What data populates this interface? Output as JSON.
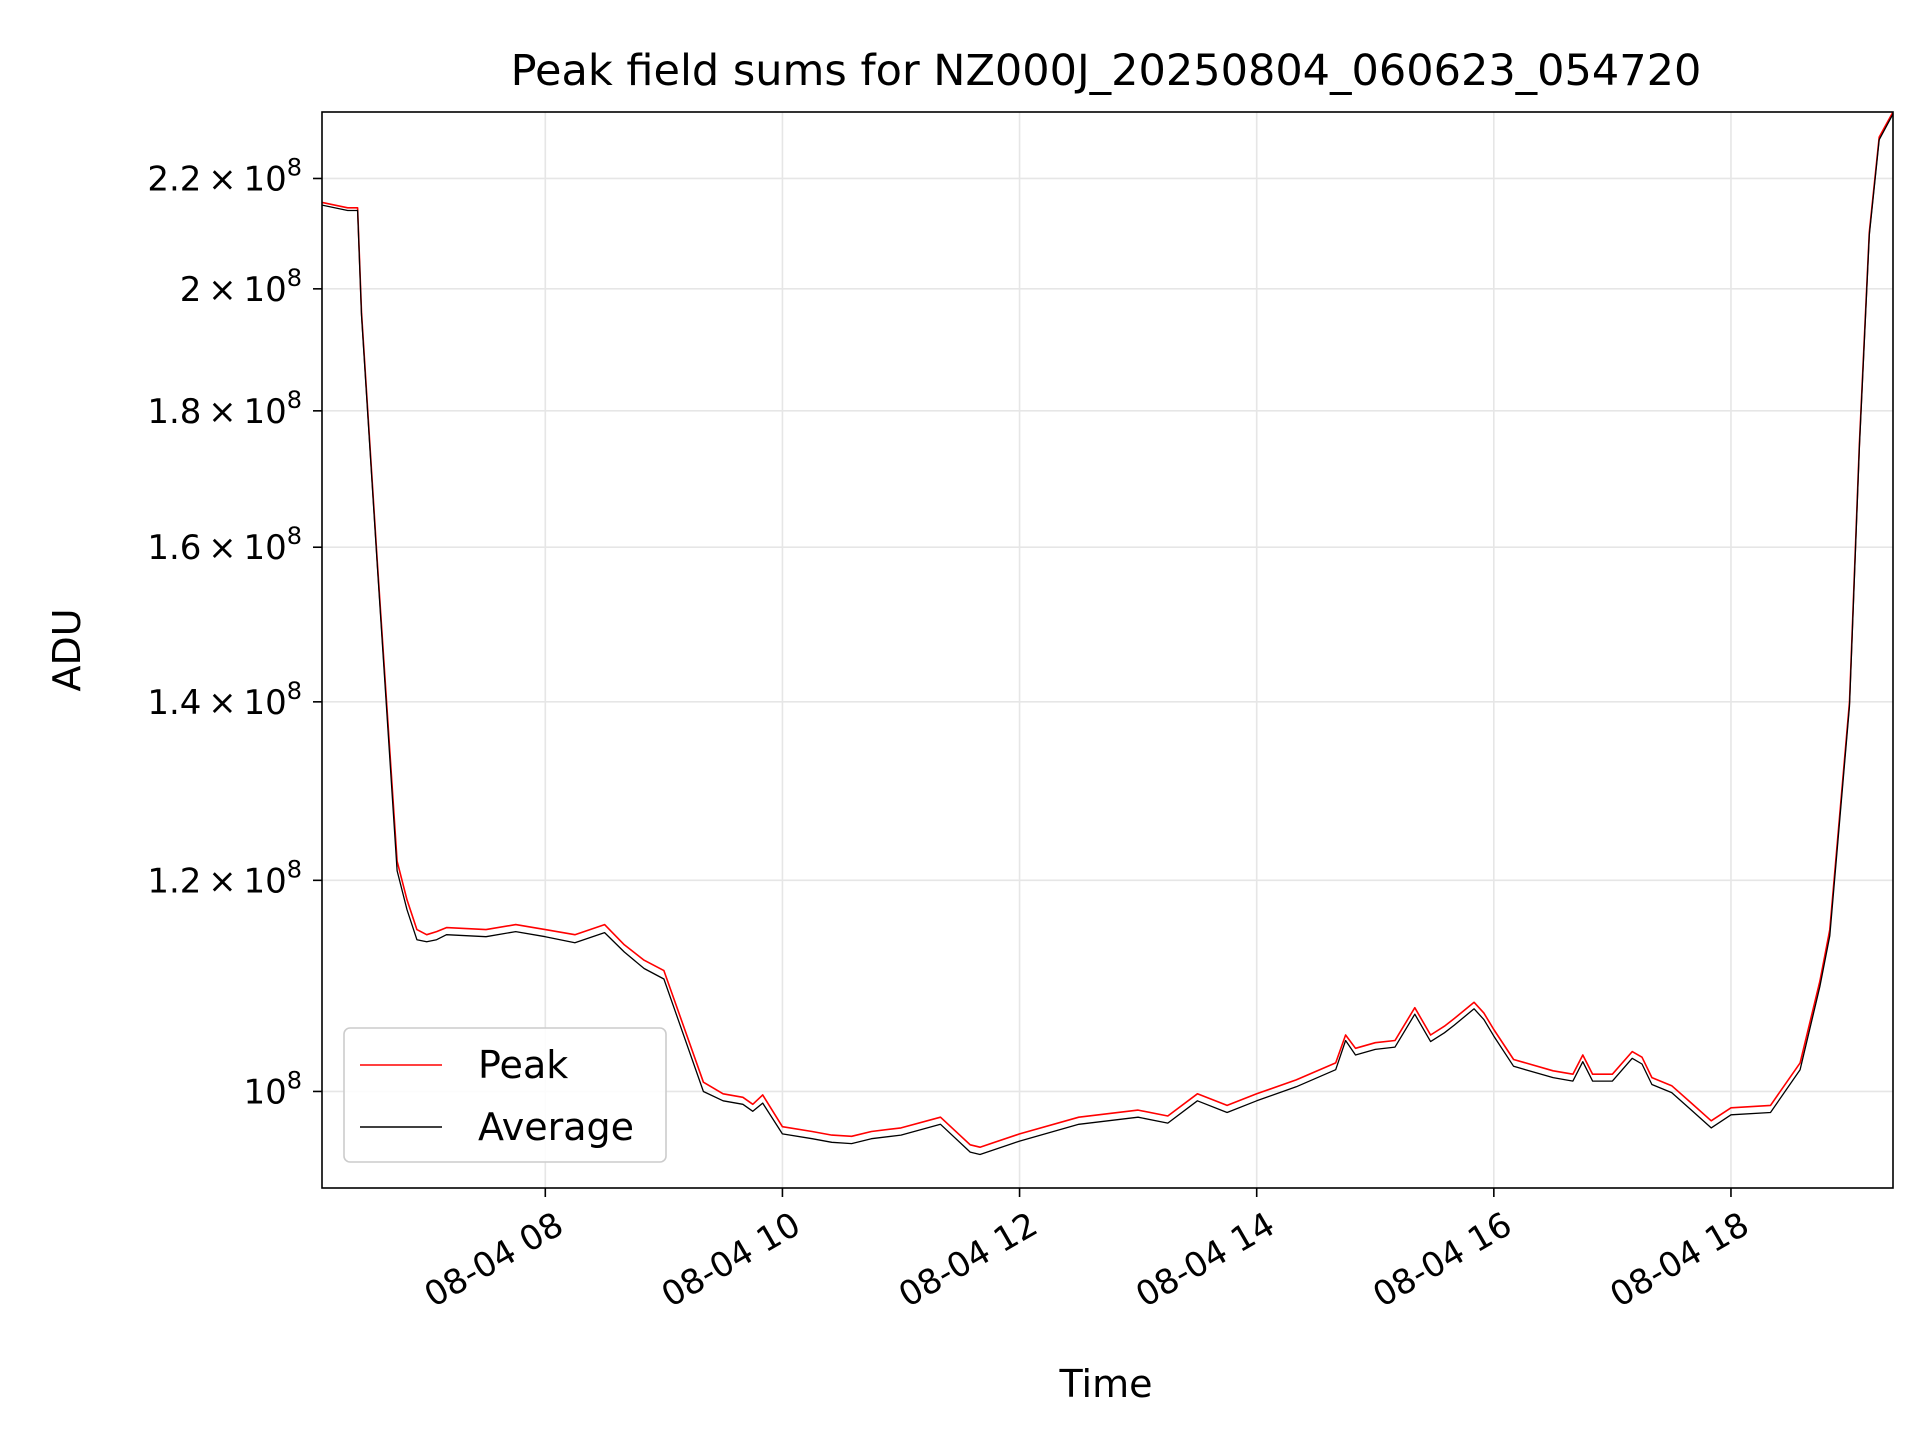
{
  "chart_data": {
    "type": "line",
    "title": "Peak field sums for NZ000J_20250804_060623_054720",
    "xlabel": "Time",
    "ylabel": "ADU",
    "y_scale": "log",
    "xlim": [
      "2025-08-04 06:07",
      "2025-08-04 19:22"
    ],
    "ylim": [
      92000000,
      233000000
    ],
    "grid": true,
    "legend_position": "lower left",
    "x_ticks": [
      {
        "value": "2025-08-04 08:00",
        "label": "08-04 08"
      },
      {
        "value": "2025-08-04 10:00",
        "label": "08-04 10"
      },
      {
        "value": "2025-08-04 12:00",
        "label": "08-04 12"
      },
      {
        "value": "2025-08-04 14:00",
        "label": "08-04 14"
      },
      {
        "value": "2025-08-04 16:00",
        "label": "08-04 16"
      },
      {
        "value": "2025-08-04 18:00",
        "label": "08-04 18"
      }
    ],
    "y_ticks": [
      {
        "value": 100000000,
        "mantissa": "",
        "exponent": "8",
        "base": "10"
      },
      {
        "value": 120000000,
        "mantissa": "1.2",
        "exponent": "8",
        "base": "10"
      },
      {
        "value": 140000000,
        "mantissa": "1.4",
        "exponent": "8",
        "base": "10"
      },
      {
        "value": 160000000,
        "mantissa": "1.6",
        "exponent": "8",
        "base": "10"
      },
      {
        "value": 180000000,
        "mantissa": "1.8",
        "exponent": "8",
        "base": "10"
      },
      {
        "value": 200000000,
        "mantissa": "2",
        "exponent": "8",
        "base": "10"
      },
      {
        "value": 220000000,
        "mantissa": "2.2",
        "exponent": "8",
        "base": "10"
      }
    ],
    "series": [
      {
        "name": "Peak",
        "color": "#ff0000",
        "x": [
          "2025-08-04 06:07",
          "2025-08-04 06:20",
          "2025-08-04 06:25",
          "2025-08-04 06:27",
          "2025-08-04 06:35",
          "2025-08-04 06:45",
          "2025-08-04 06:50",
          "2025-08-04 06:55",
          "2025-08-04 07:00",
          "2025-08-04 07:05",
          "2025-08-04 07:10",
          "2025-08-04 07:30",
          "2025-08-04 07:45",
          "2025-08-04 08:00",
          "2025-08-04 08:15",
          "2025-08-04 08:30",
          "2025-08-04 08:40",
          "2025-08-04 08:50",
          "2025-08-04 09:00",
          "2025-08-04 09:20",
          "2025-08-04 09:30",
          "2025-08-04 09:40",
          "2025-08-04 09:45",
          "2025-08-04 09:50",
          "2025-08-04 10:00",
          "2025-08-04 10:15",
          "2025-08-04 10:25",
          "2025-08-04 10:35",
          "2025-08-04 10:45",
          "2025-08-04 11:00",
          "2025-08-04 11:20",
          "2025-08-04 11:35",
          "2025-08-04 11:40",
          "2025-08-04 12:00",
          "2025-08-04 12:30",
          "2025-08-04 13:00",
          "2025-08-04 13:15",
          "2025-08-04 13:30",
          "2025-08-04 13:45",
          "2025-08-04 14:00",
          "2025-08-04 14:20",
          "2025-08-04 14:40",
          "2025-08-04 14:45",
          "2025-08-04 14:50",
          "2025-08-04 15:00",
          "2025-08-04 15:10",
          "2025-08-04 15:20",
          "2025-08-04 15:28",
          "2025-08-04 15:35",
          "2025-08-04 15:40",
          "2025-08-04 15:50",
          "2025-08-04 15:55",
          "2025-08-04 16:00",
          "2025-08-04 16:10",
          "2025-08-04 16:30",
          "2025-08-04 16:40",
          "2025-08-04 16:45",
          "2025-08-04 16:50",
          "2025-08-04 17:00",
          "2025-08-04 17:10",
          "2025-08-04 17:15",
          "2025-08-04 17:20",
          "2025-08-04 17:30",
          "2025-08-04 17:40",
          "2025-08-04 17:50",
          "2025-08-04 18:00",
          "2025-08-04 18:20",
          "2025-08-04 18:35",
          "2025-08-04 18:45",
          "2025-08-04 18:50",
          "2025-08-04 19:00",
          "2025-08-04 19:05",
          "2025-08-04 19:10",
          "2025-08-04 19:15",
          "2025-08-04 19:22"
        ],
        "y": [
          215500000,
          214500000,
          214500000,
          196000000,
          158000000,
          122000000,
          118000000,
          115000000,
          114500000,
          114800000,
          115200000,
          115000000,
          115500000,
          115000000,
          114500000,
          115500000,
          113500000,
          112000000,
          111000000,
          100800000,
          99800000,
          99500000,
          98900000,
          99700000,
          97000000,
          96600000,
          96300000,
          96200000,
          96600000,
          96900000,
          97800000,
          95500000,
          95300000,
          96400000,
          97800000,
          98400000,
          97900000,
          99800000,
          98800000,
          99800000,
          101000000,
          102500000,
          105000000,
          103800000,
          104300000,
          104500000,
          107500000,
          105000000,
          105800000,
          106500000,
          108000000,
          107000000,
          105500000,
          102800000,
          101800000,
          101500000,
          103200000,
          101500000,
          101500000,
          103500000,
          103000000,
          101200000,
          100500000,
          99000000,
          97500000,
          98600000,
          98800000,
          102500000,
          110000000,
          115000000,
          140000000,
          175000000,
          210000000,
          228000000,
          233000000
        ]
      },
      {
        "name": "Average",
        "color": "#000000",
        "x": [
          "2025-08-04 06:07",
          "2025-08-04 06:20",
          "2025-08-04 06:25",
          "2025-08-04 06:27",
          "2025-08-04 06:35",
          "2025-08-04 06:45",
          "2025-08-04 06:50",
          "2025-08-04 06:55",
          "2025-08-04 07:00",
          "2025-08-04 07:05",
          "2025-08-04 07:10",
          "2025-08-04 07:30",
          "2025-08-04 07:45",
          "2025-08-04 08:00",
          "2025-08-04 08:15",
          "2025-08-04 08:30",
          "2025-08-04 08:40",
          "2025-08-04 08:50",
          "2025-08-04 09:00",
          "2025-08-04 09:20",
          "2025-08-04 09:30",
          "2025-08-04 09:40",
          "2025-08-04 09:45",
          "2025-08-04 09:50",
          "2025-08-04 10:00",
          "2025-08-04 10:15",
          "2025-08-04 10:25",
          "2025-08-04 10:35",
          "2025-08-04 10:45",
          "2025-08-04 11:00",
          "2025-08-04 11:20",
          "2025-08-04 11:35",
          "2025-08-04 11:40",
          "2025-08-04 12:00",
          "2025-08-04 12:30",
          "2025-08-04 13:00",
          "2025-08-04 13:15",
          "2025-08-04 13:30",
          "2025-08-04 13:45",
          "2025-08-04 14:00",
          "2025-08-04 14:20",
          "2025-08-04 14:40",
          "2025-08-04 14:45",
          "2025-08-04 14:50",
          "2025-08-04 15:00",
          "2025-08-04 15:10",
          "2025-08-04 15:20",
          "2025-08-04 15:28",
          "2025-08-04 15:35",
          "2025-08-04 15:40",
          "2025-08-04 15:50",
          "2025-08-04 15:55",
          "2025-08-04 16:00",
          "2025-08-04 16:10",
          "2025-08-04 16:30",
          "2025-08-04 16:40",
          "2025-08-04 16:45",
          "2025-08-04 16:50",
          "2025-08-04 17:00",
          "2025-08-04 17:10",
          "2025-08-04 17:15",
          "2025-08-04 17:20",
          "2025-08-04 17:30",
          "2025-08-04 17:40",
          "2025-08-04 17:50",
          "2025-08-04 18:00",
          "2025-08-04 18:20",
          "2025-08-04 18:35",
          "2025-08-04 18:45",
          "2025-08-04 18:50",
          "2025-08-04 19:00",
          "2025-08-04 19:05",
          "2025-08-04 19:10",
          "2025-08-04 19:15",
          "2025-08-04 19:22"
        ],
        "y": [
          215000000,
          214000000,
          214000000,
          195500000,
          157500000,
          121000000,
          117000000,
          114000000,
          113800000,
          114000000,
          114500000,
          114300000,
          114800000,
          114300000,
          113700000,
          114700000,
          112800000,
          111200000,
          110200000,
          100000000,
          99200000,
          98900000,
          98300000,
          99000000,
          96400000,
          96000000,
          95700000,
          95600000,
          96000000,
          96300000,
          97200000,
          94900000,
          94700000,
          95800000,
          97200000,
          97800000,
          97300000,
          99200000,
          98200000,
          99200000,
          100400000,
          101900000,
          104500000,
          103200000,
          103700000,
          103900000,
          106900000,
          104400000,
          105200000,
          105900000,
          107400000,
          106400000,
          104900000,
          102200000,
          101200000,
          100900000,
          102600000,
          100900000,
          100900000,
          102900000,
          102400000,
          100600000,
          99900000,
          98400000,
          96900000,
          98000000,
          98200000,
          101900000,
          109500000,
          114400000,
          139500000,
          174500000,
          209500000,
          227500000,
          232600000
        ]
      }
    ]
  }
}
